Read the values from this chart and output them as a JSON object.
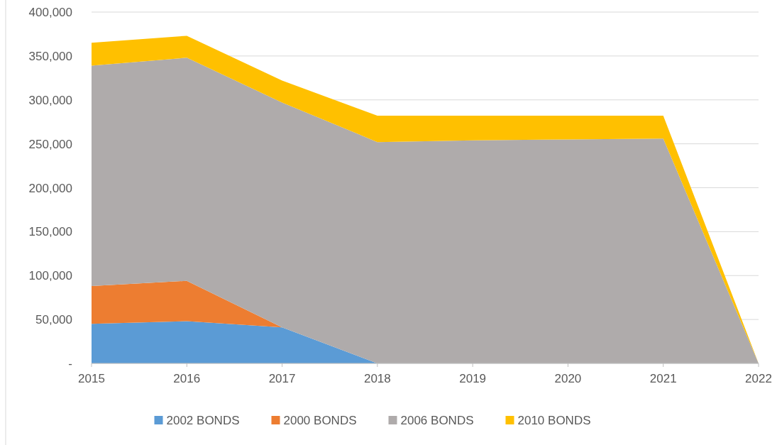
{
  "chart_data": {
    "type": "area",
    "stacked": true,
    "categories": [
      "2015",
      "2016",
      "2017",
      "2018",
      "2019",
      "2020",
      "2021",
      "2022"
    ],
    "series": [
      {
        "name": "2002 BONDS",
        "color": "#5b9bd5",
        "values": [
          45000,
          48000,
          41000,
          0,
          0,
          0,
          0,
          0
        ]
      },
      {
        "name": "2000 BONDS",
        "color": "#ed7d31",
        "values": [
          43000,
          46000,
          0,
          0,
          0,
          0,
          0,
          0
        ]
      },
      {
        "name": "2006 BONDS",
        "color": "#afabab",
        "values": [
          251000,
          254000,
          256000,
          252000,
          254000,
          255000,
          256000,
          0
        ]
      },
      {
        "name": "2010 BONDS",
        "color": "#ffc000",
        "values": [
          26000,
          25000,
          25000,
          30000,
          28000,
          27000,
          26000,
          0
        ]
      }
    ],
    "ylim": [
      0,
      400000
    ],
    "yticks": [
      {
        "value": 0,
        "label": "-"
      },
      {
        "value": 50000,
        "label": "50,000"
      },
      {
        "value": 100000,
        "label": "100,000"
      },
      {
        "value": 150000,
        "label": "150,000"
      },
      {
        "value": 200000,
        "label": "200,000"
      },
      {
        "value": 250000,
        "label": "250,000"
      },
      {
        "value": 300000,
        "label": "300,000"
      },
      {
        "value": 350000,
        "label": "350,000"
      },
      {
        "value": 400000,
        "label": "400,000"
      }
    ],
    "grid": "y",
    "legend": "bottom"
  }
}
